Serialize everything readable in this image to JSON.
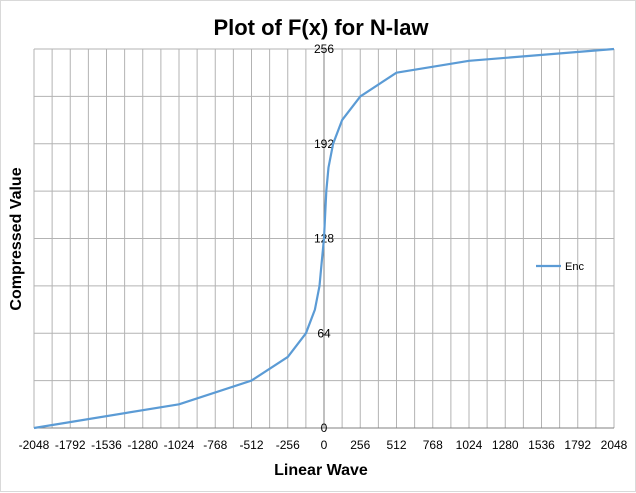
{
  "chart_data": {
    "type": "line",
    "title": "Plot of F(x)  for N-law",
    "xlabel": "Linear Wave",
    "ylabel": "Compressed Value",
    "xlim": [
      -2048,
      2048
    ],
    "ylim": [
      0,
      256
    ],
    "x_ticks": [
      -2048,
      -1792,
      -1536,
      -1280,
      -1024,
      -768,
      -512,
      -256,
      0,
      256,
      512,
      768,
      1024,
      1280,
      1536,
      1792,
      2048
    ],
    "x_tick_labels": [
      "-2048",
      "-1792",
      "-1536",
      "-1280",
      "-1024",
      "-768",
      "-512",
      "-256",
      "0",
      "256",
      "512",
      "768",
      "1024",
      "1280",
      "1536",
      "1792",
      "2048"
    ],
    "y_ticks": [
      0,
      64,
      128,
      192,
      256
    ],
    "y_tick_labels": [
      "0",
      "64",
      "128",
      "192",
      "256"
    ],
    "grid": true,
    "legend": {
      "placement": "right",
      "entries": [
        "Enc"
      ]
    },
    "series": [
      {
        "name": "Enc",
        "color": "#5b9bd5",
        "x": [
          -2048,
          -1024,
          -512,
          -256,
          -128,
          -64,
          -32,
          -16,
          0,
          16,
          32,
          64,
          128,
          256,
          512,
          1024,
          2048
        ],
        "y": [
          0,
          16,
          32,
          48,
          64,
          80,
          96,
          112,
          128,
          160,
          176,
          192,
          208,
          224,
          240,
          248,
          256
        ]
      }
    ]
  }
}
